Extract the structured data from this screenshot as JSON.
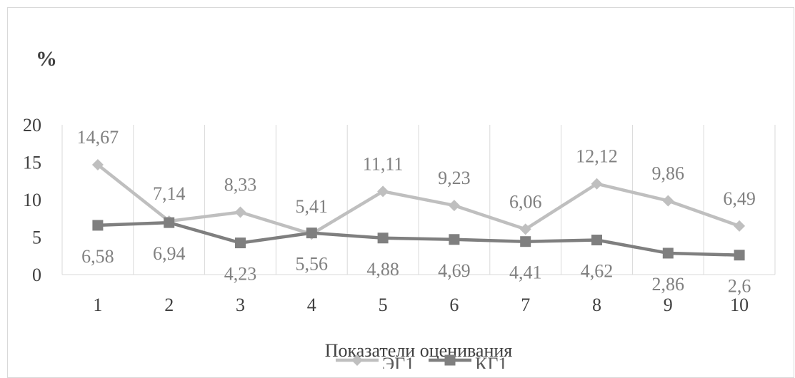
{
  "chart_data": {
    "type": "line",
    "unit_label": "%",
    "xlabel": "Показатели оценивания",
    "ylabel": "",
    "ylim": [
      0,
      20
    ],
    "yticks": [
      "0",
      "5",
      "10",
      "15",
      "20"
    ],
    "categories": [
      "1",
      "2",
      "3",
      "4",
      "5",
      "6",
      "7",
      "8",
      "9",
      "10"
    ],
    "grid": "vertical",
    "legend_position": "bottom",
    "series": [
      {
        "name": "ЭГ1",
        "color": "#bfbfbf",
        "marker": "diamond",
        "values": [
          14.67,
          7.14,
          8.33,
          5.41,
          11.11,
          9.23,
          6.06,
          12.12,
          9.86,
          6.49
        ],
        "labels": [
          "14,67",
          "7,14",
          "8,33",
          "5,41",
          "11,11",
          "9,23",
          "6,06",
          "12,12",
          "9,86",
          "6,49"
        ]
      },
      {
        "name": "КГ1",
        "color": "#7f7f7f",
        "marker": "square",
        "values": [
          6.58,
          6.94,
          4.23,
          5.56,
          4.88,
          4.69,
          4.41,
          4.62,
          2.86,
          2.6
        ],
        "labels": [
          "6,58",
          "6,94",
          "4,23",
          "5,56",
          "4,88",
          "4,69",
          "4,41",
          "4,62",
          "2,86",
          "2,6"
        ]
      }
    ]
  }
}
